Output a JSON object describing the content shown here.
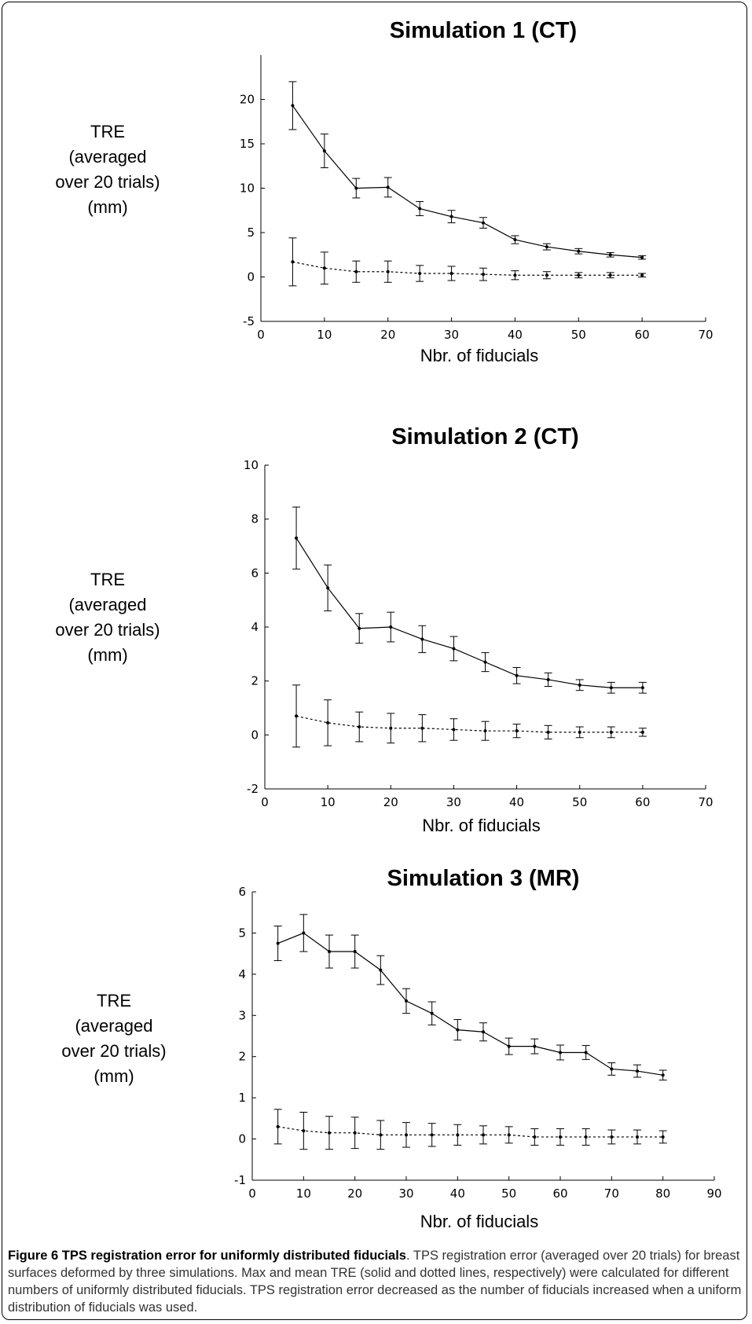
{
  "chart_data": [
    {
      "type": "line",
      "title": "Simulation 1 (CT)",
      "xlabel": "Nbr. of fiducials",
      "ylabel": [
        "TRE",
        "(averaged",
        "over 20 trials)",
        "(mm)"
      ],
      "xlim": [
        0,
        70
      ],
      "ylim": [
        -5,
        25
      ],
      "xticks": [
        0,
        10,
        20,
        30,
        40,
        50,
        60,
        70
      ],
      "yticks": [
        -5,
        0,
        5,
        10,
        15,
        20
      ],
      "x": [
        5,
        10,
        15,
        20,
        25,
        30,
        35,
        40,
        45,
        50,
        55,
        60
      ],
      "series": [
        {
          "style": "solid",
          "values": [
            19.3,
            14.2,
            10.0,
            10.1,
            7.7,
            6.8,
            6.1,
            4.2,
            3.4,
            2.9,
            2.5,
            2.2
          ],
          "error": [
            2.7,
            1.9,
            1.1,
            1.1,
            0.8,
            0.7,
            0.6,
            0.45,
            0.35,
            0.3,
            0.25,
            0.2
          ]
        },
        {
          "style": "dotted",
          "values": [
            1.7,
            1.0,
            0.6,
            0.6,
            0.4,
            0.4,
            0.3,
            0.2,
            0.2,
            0.2,
            0.2,
            0.2
          ],
          "error": [
            2.7,
            1.8,
            1.2,
            1.2,
            0.9,
            0.8,
            0.7,
            0.5,
            0.4,
            0.3,
            0.3,
            0.2
          ]
        }
      ]
    },
    {
      "type": "line",
      "title": "Simulation 2 (CT)",
      "xlabel": "Nbr. of fiducials",
      "ylabel": [
        "TRE",
        "(averaged",
        "over 20 trials)",
        "(mm)"
      ],
      "xlim": [
        0,
        70
      ],
      "ylim": [
        -2,
        10
      ],
      "xticks": [
        0,
        10,
        20,
        30,
        40,
        50,
        60,
        70
      ],
      "yticks": [
        -2,
        0,
        2,
        4,
        6,
        8,
        10
      ],
      "x": [
        5,
        10,
        15,
        20,
        25,
        30,
        35,
        40,
        45,
        50,
        55,
        60
      ],
      "series": [
        {
          "style": "solid",
          "values": [
            7.3,
            5.45,
            3.95,
            4.0,
            3.55,
            3.2,
            2.7,
            2.2,
            2.05,
            1.85,
            1.75,
            1.75
          ],
          "error": [
            1.15,
            0.85,
            0.55,
            0.55,
            0.5,
            0.45,
            0.35,
            0.3,
            0.25,
            0.2,
            0.2,
            0.2
          ]
        },
        {
          "style": "dotted",
          "values": [
            0.7,
            0.45,
            0.3,
            0.25,
            0.25,
            0.2,
            0.15,
            0.15,
            0.1,
            0.1,
            0.1,
            0.1
          ],
          "error": [
            1.15,
            0.85,
            0.55,
            0.55,
            0.5,
            0.4,
            0.35,
            0.25,
            0.25,
            0.2,
            0.2,
            0.15
          ]
        }
      ]
    },
    {
      "type": "line",
      "title": "Simulation 3 (MR)",
      "xlabel": "Nbr. of fiducials",
      "ylabel": [
        "TRE",
        "(averaged",
        "over 20 trials)",
        "(mm)"
      ],
      "xlim": [
        0,
        90
      ],
      "ylim": [
        -1,
        6
      ],
      "xticks": [
        0,
        10,
        20,
        30,
        40,
        50,
        60,
        70,
        80,
        90
      ],
      "yticks": [
        -1,
        0,
        1,
        2,
        3,
        4,
        5,
        6
      ],
      "x": [
        5,
        10,
        15,
        20,
        25,
        30,
        35,
        40,
        45,
        50,
        55,
        60,
        65,
        70,
        75,
        80
      ],
      "series": [
        {
          "style": "solid",
          "values": [
            4.75,
            5.0,
            4.55,
            4.55,
            4.1,
            3.35,
            3.05,
            2.65,
            2.6,
            2.25,
            2.25,
            2.1,
            2.1,
            1.7,
            1.65,
            1.55
          ],
          "error": [
            0.42,
            0.45,
            0.4,
            0.4,
            0.35,
            0.3,
            0.28,
            0.25,
            0.22,
            0.2,
            0.18,
            0.18,
            0.17,
            0.15,
            0.15,
            0.12
          ]
        },
        {
          "style": "dotted",
          "values": [
            0.3,
            0.2,
            0.15,
            0.15,
            0.1,
            0.1,
            0.1,
            0.1,
            0.1,
            0.1,
            0.05,
            0.05,
            0.05,
            0.05,
            0.05,
            0.05
          ],
          "error": [
            0.42,
            0.45,
            0.4,
            0.38,
            0.35,
            0.3,
            0.28,
            0.25,
            0.22,
            0.2,
            0.2,
            0.2,
            0.2,
            0.17,
            0.17,
            0.15
          ]
        }
      ]
    }
  ],
  "caption": {
    "title": "Figure 6 TPS registration error for uniformly distributed fiducials",
    "text": ". TPS registration error (averaged over 20 trials) for breast surfaces deformed by three simulations. Max and mean TRE (solid and dotted lines, respectively) were calculated for different numbers of uniformly distributed fiducials. TPS registration error decreased as the number of fiducials increased when a uniform distribution of fiducials was used."
  }
}
